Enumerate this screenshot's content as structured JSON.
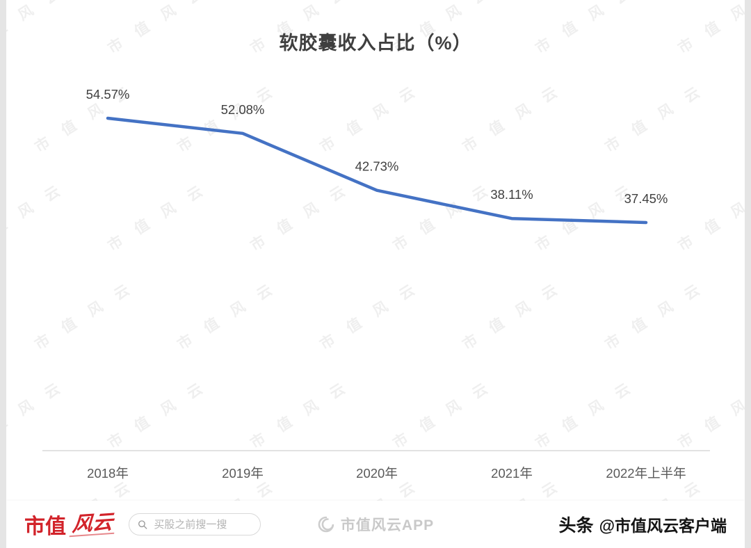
{
  "chart_data": {
    "type": "line",
    "title": "软胶囊收入占比（%）",
    "categories": [
      "2018年",
      "2019年",
      "2020年",
      "2021年",
      "2022年上半年"
    ],
    "values": [
      54.57,
      52.08,
      42.73,
      38.11,
      37.45
    ],
    "point_labels": [
      "54.57%",
      "52.08%",
      "42.73%",
      "38.11%",
      "37.45%"
    ],
    "line_color": "#4472c4",
    "label_color": "#404040",
    "axis_color": "#d9d9d9",
    "tick_color": "#595959",
    "grid": false,
    "legend": "none",
    "ylim": [
      35,
      57
    ]
  },
  "watermark": {
    "text": "市值风云"
  },
  "footer": {
    "brand_text": "市值",
    "brand_seal": "风云",
    "search": {
      "placeholder": "买股之前搜一搜"
    },
    "center_logo_text": "市值风云APP",
    "right_brand": "头条",
    "right_handle": "@市值风云客户端",
    "accent_red": "#d2232a"
  }
}
